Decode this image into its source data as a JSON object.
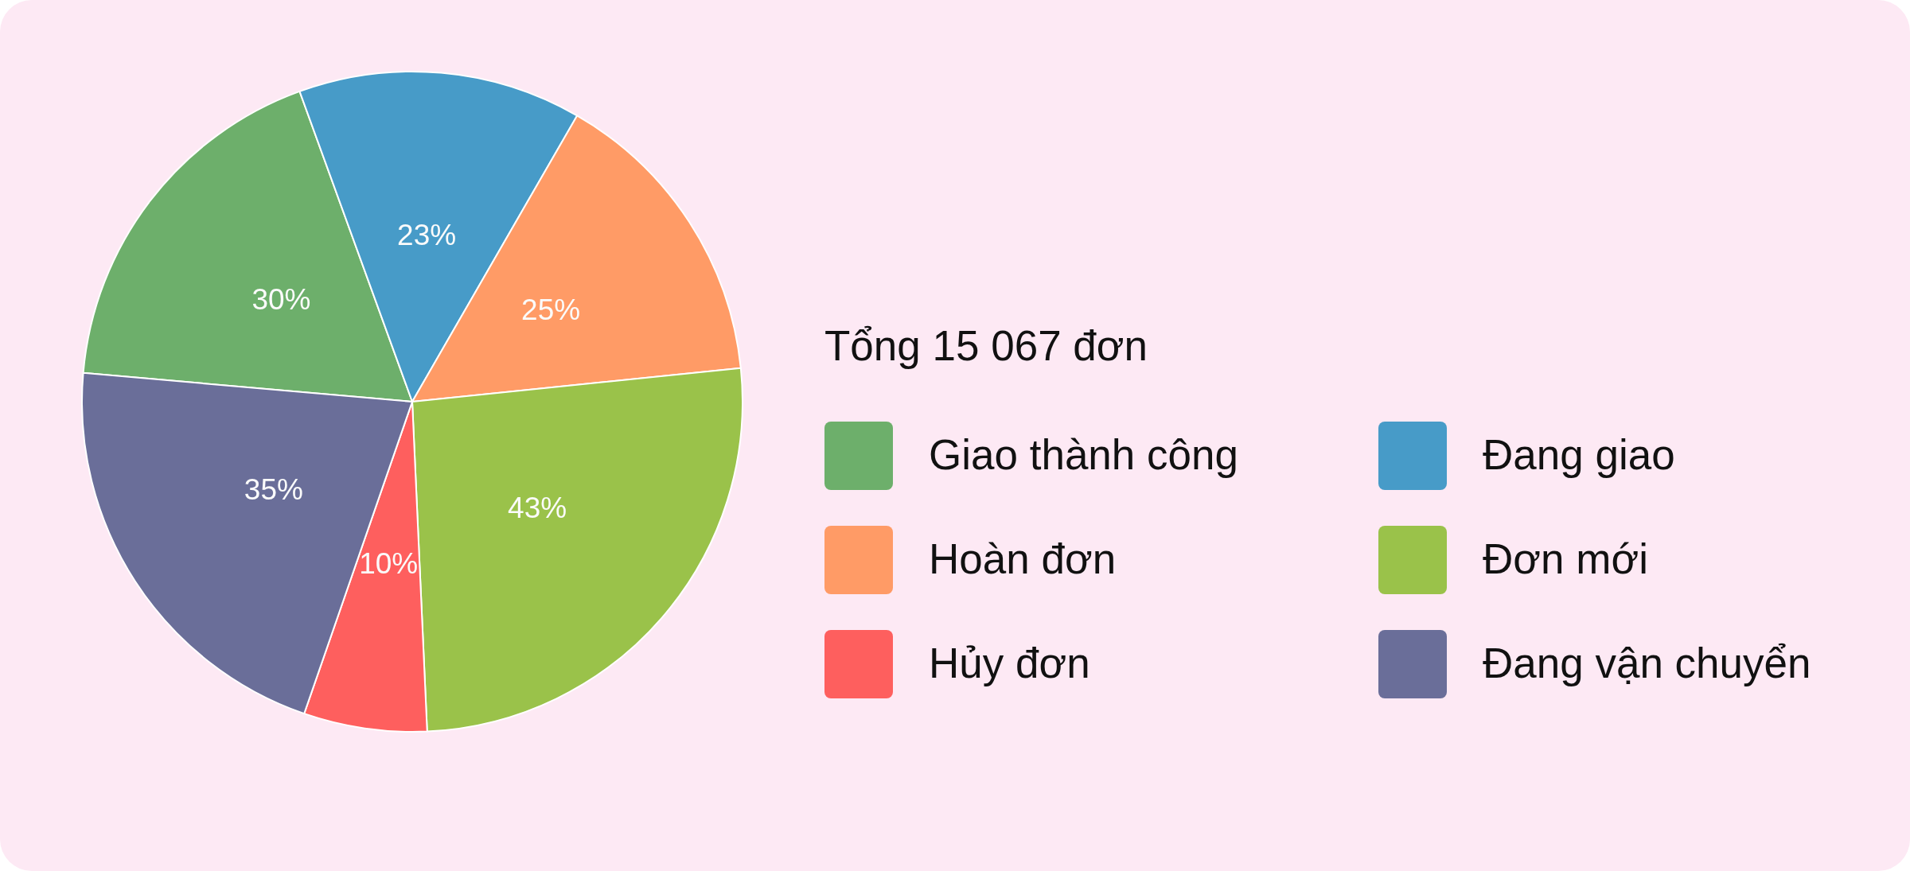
{
  "chart_data": {
    "type": "pie",
    "categories": [
      "Giao thành công",
      "Đang giao",
      "Hoàn đơn",
      "Đơn mới",
      "Hủy đơn",
      "Đang vận chuyển"
    ],
    "values": [
      30,
      23,
      25,
      43,
      10,
      35
    ],
    "colors": [
      "#6daf6b",
      "#479bc8",
      "#ff9b66",
      "#9ac24a",
      "#fe5f5e",
      "#6a6e99"
    ],
    "value_labels": [
      "30%",
      "23%",
      "25%",
      "43%",
      "10%",
      "35%"
    ],
    "legend_title": "Tổng 15 067 đơn",
    "legend": "right"
  }
}
